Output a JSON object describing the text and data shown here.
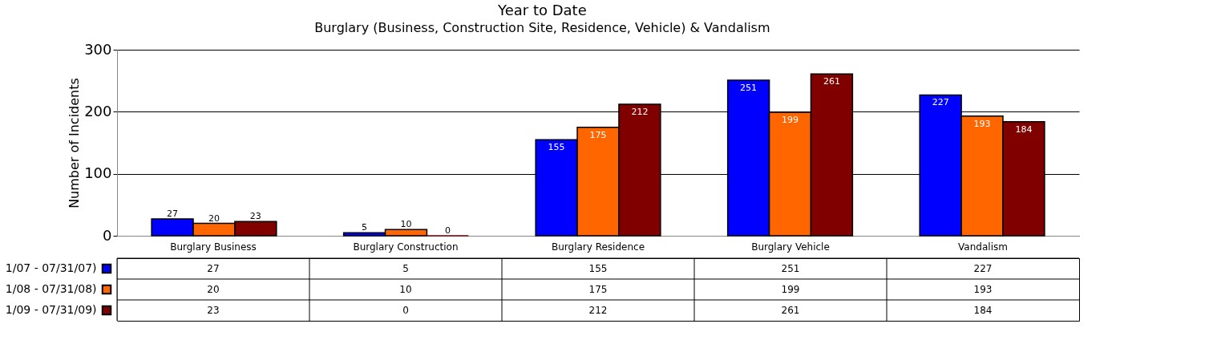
{
  "chart_data": {
    "type": "bar",
    "title": "Year to Date",
    "subtitle": "Burglary (Business, Construction Site, Residence, Vehicle) & Vandalism",
    "ylabel": "Number of Incidents",
    "categories": [
      "Burglary Business",
      "Burglary Construction",
      "Burglary Residence",
      "Burglary Vehicle",
      "Vandalism"
    ],
    "series": [
      {
        "name": "1/07 - 07/31/07)",
        "color": "#0000ff",
        "values": [
          27,
          5,
          155,
          251,
          227
        ]
      },
      {
        "name": "1/08 - 07/31/08)",
        "color": "#ff6600",
        "values": [
          20,
          10,
          175,
          199,
          193
        ]
      },
      {
        "name": "1/09 - 07/31/09)",
        "color": "#800000",
        "values": [
          23,
          0,
          212,
          261,
          184
        ]
      }
    ],
    "annotations": [
      "27",
      "5",
      "155",
      "251",
      "227",
      "20",
      "10",
      "175",
      "199",
      "193",
      "23",
      "0",
      "212",
      "261",
      "184"
    ],
    "ylim": [
      0,
      300
    ],
    "yticks": [
      0,
      100,
      200,
      300
    ],
    "grid": "y",
    "data_labels": true,
    "legend": "bottom"
  }
}
